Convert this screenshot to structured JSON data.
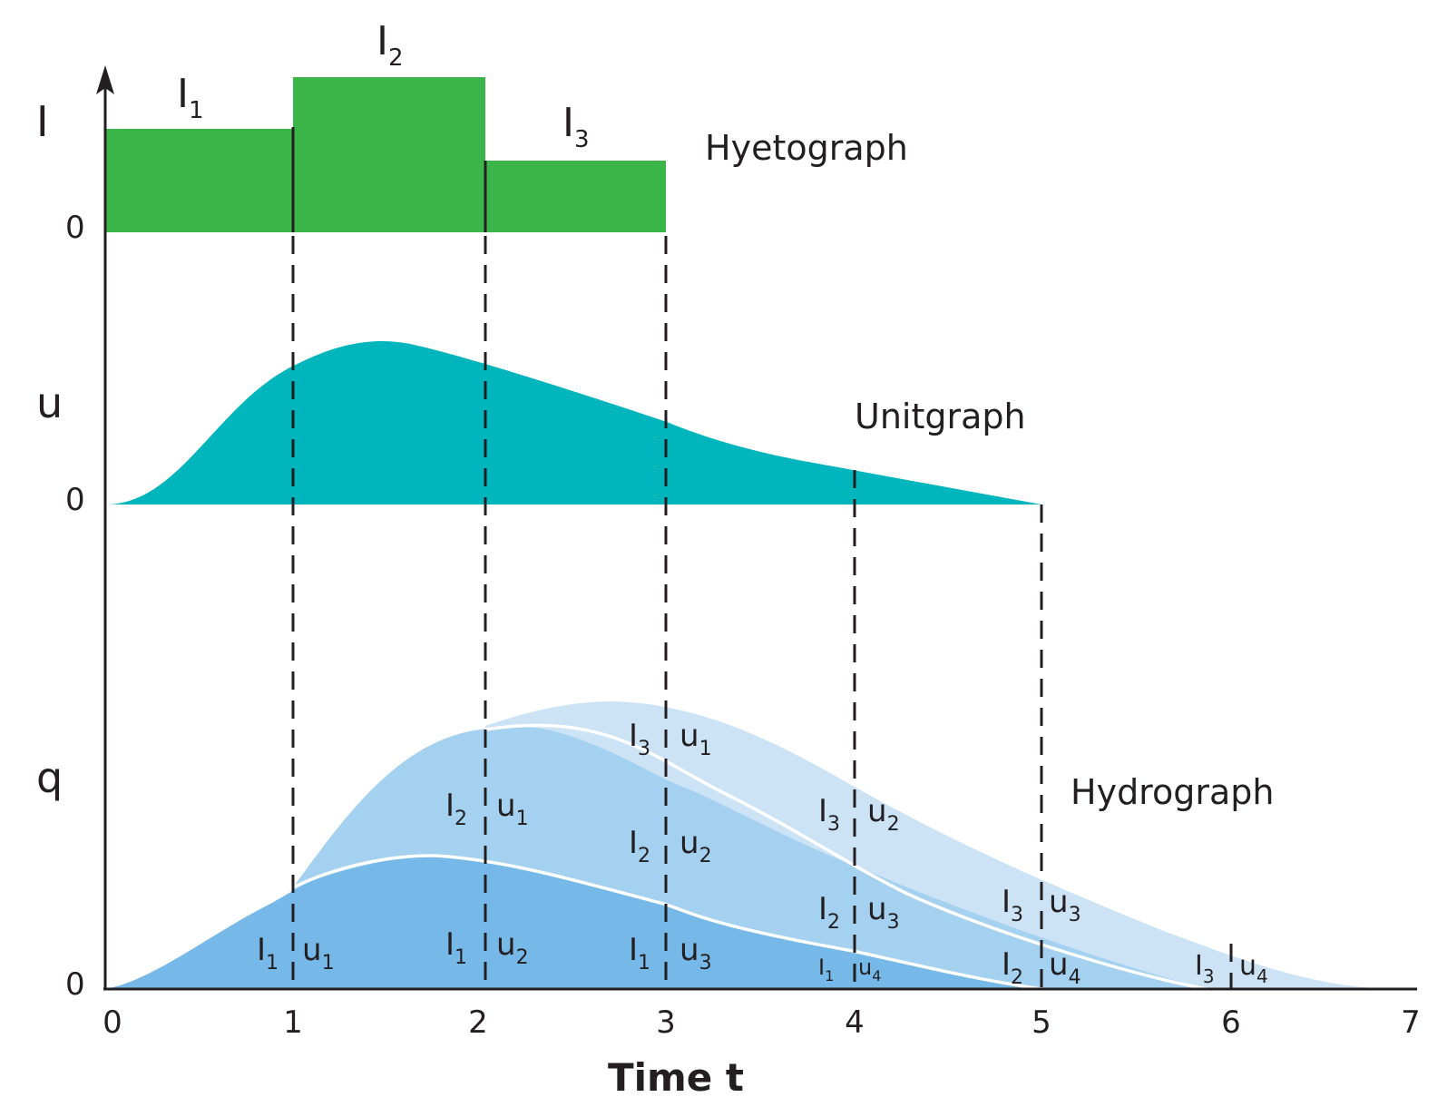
{
  "colors": {
    "hyetograph": "#3bb44a",
    "unitgraph": "#00b5bb",
    "hydro_layer1": "#76b9e8",
    "hydro_layer2": "#a4d1f0",
    "hydro_layer3": "#cce3f6",
    "axis": "#231f20"
  },
  "axis_letters": {
    "i": "I",
    "u": "u",
    "q": "q"
  },
  "zero_labels": {
    "hyeto": "0",
    "unit": "0",
    "hydro": "0"
  },
  "x_ticks": [
    "0",
    "1",
    "2",
    "3",
    "4",
    "5",
    "6",
    "7"
  ],
  "xlabel": "Time t",
  "titles": {
    "hyeto": "Hyetograph",
    "unit": "Unitgraph",
    "hydro": "Hydrograph"
  },
  "bar_labels": {
    "b1": {
      "main": "I",
      "sub": "1"
    },
    "b2": {
      "main": "I",
      "sub": "2"
    },
    "b3": {
      "main": "I",
      "sub": "3"
    }
  },
  "hydro_labels": [
    {
      "main": "I",
      "sub": "1"
    },
    {
      "main": "u",
      "sub": "1"
    },
    {
      "main": "I",
      "sub": "1"
    },
    {
      "main": "u",
      "sub": "2"
    },
    {
      "main": "I",
      "sub": "2"
    },
    {
      "main": "u",
      "sub": "1"
    },
    {
      "main": "I",
      "sub": "1"
    },
    {
      "main": "u",
      "sub": "3"
    },
    {
      "main": "I",
      "sub": "2"
    },
    {
      "main": "u",
      "sub": "2"
    },
    {
      "main": "I",
      "sub": "3"
    },
    {
      "main": "u",
      "sub": "1"
    },
    {
      "main": "I",
      "sub": "1"
    },
    {
      "main": "u",
      "sub": "4"
    },
    {
      "main": "I",
      "sub": "2"
    },
    {
      "main": "u",
      "sub": "3"
    },
    {
      "main": "I",
      "sub": "3"
    },
    {
      "main": "u",
      "sub": "2"
    },
    {
      "main": "I",
      "sub": "2"
    },
    {
      "main": "u",
      "sub": "4"
    },
    {
      "main": "I",
      "sub": "3"
    },
    {
      "main": "u",
      "sub": "3"
    },
    {
      "main": "I",
      "sub": "3"
    },
    {
      "main": "u",
      "sub": "4"
    }
  ],
  "chart_data": {
    "type": "area",
    "x_range": [
      0,
      7
    ],
    "hyetograph": [
      {
        "t0": 0,
        "t1": 1,
        "intensity": 1.0,
        "label": "I1"
      },
      {
        "t0": 1,
        "t1": 2,
        "intensity": 1.5,
        "label": "I2"
      },
      {
        "t0": 2,
        "t1": 3,
        "intensity": 0.7,
        "label": "I3"
      }
    ]
  }
}
